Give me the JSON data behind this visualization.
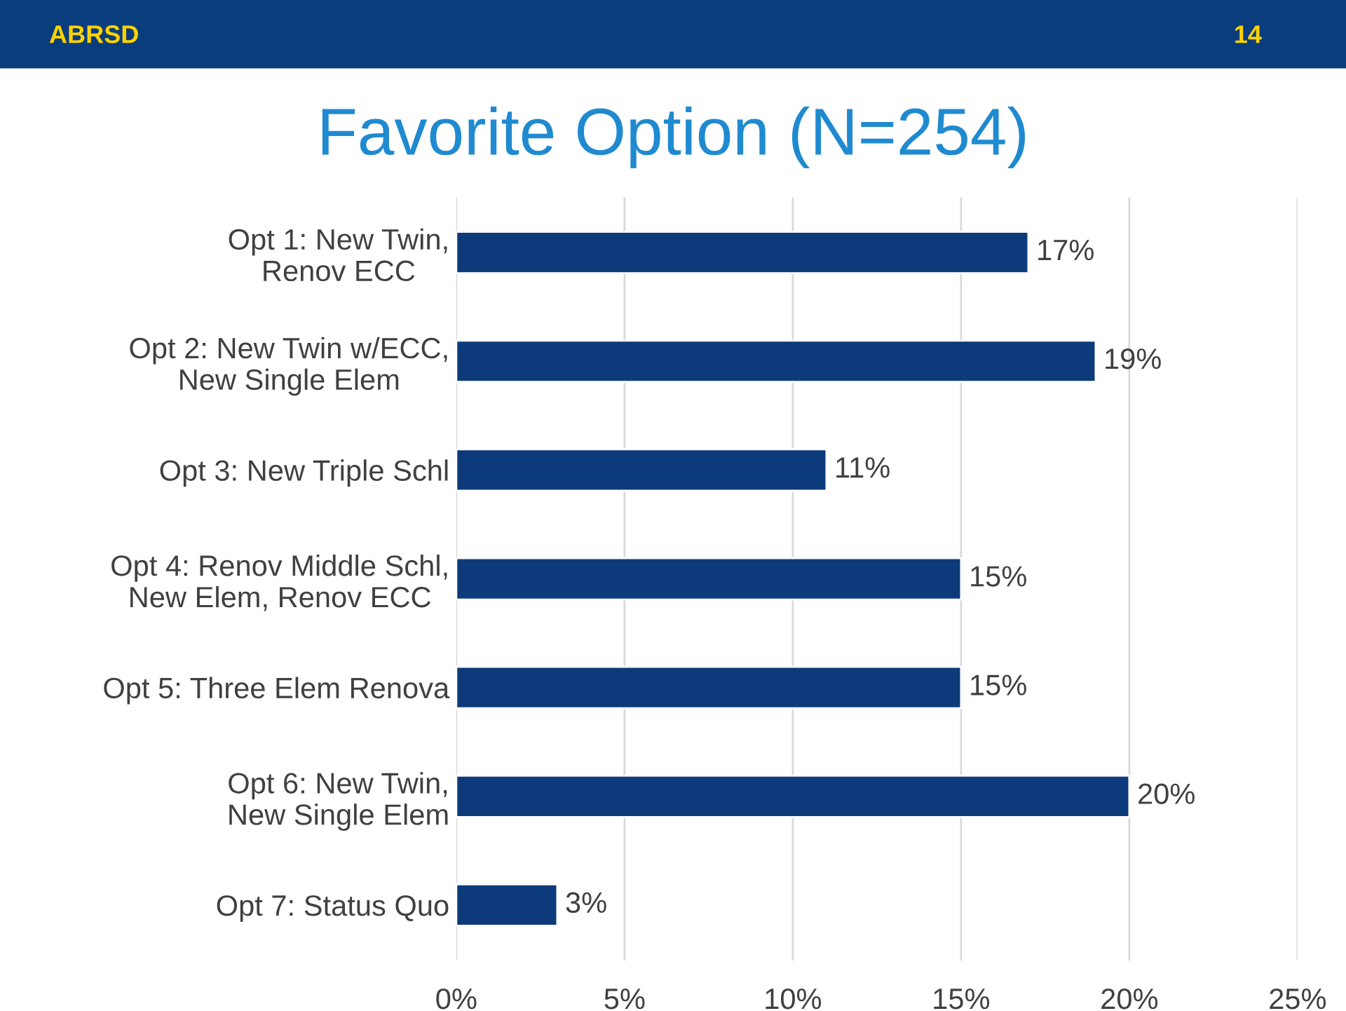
{
  "chart_data": {
    "type": "bar",
    "orientation": "horizontal",
    "title": "Favorite Option (N=254)",
    "categories": [
      "Opt 1: New Twin,\nRenov ECC",
      "Opt 2: New Twin w/ECC,\nNew Single Elem",
      "Opt 3: New Triple Schl",
      "Opt 4: Renov Middle Schl,\nNew Elem, Renov ECC",
      "Opt 5: Three Elem Renova",
      "Opt 6: New Twin,\nNew Single Elem",
      "Opt 7: Status Quo"
    ],
    "values": [
      17,
      19,
      11,
      15,
      15,
      20,
      3
    ],
    "value_labels": [
      "17%",
      "19%",
      "11%",
      "15%",
      "15%",
      "20%",
      "3%"
    ],
    "color": "#0d3a7a",
    "xlim": [
      0,
      25
    ],
    "xticks": [
      {
        "value": 0,
        "label": "0%"
      },
      {
        "value": 5,
        "label": "5%"
      },
      {
        "value": 10,
        "label": "10%"
      },
      {
        "value": 15,
        "label": "15%"
      },
      {
        "value": 20,
        "label": "20%"
      },
      {
        "value": 25,
        "label": "25%"
      }
    ],
    "grid": "x",
    "annotations": [
      "ABRSD",
      "14"
    ]
  }
}
